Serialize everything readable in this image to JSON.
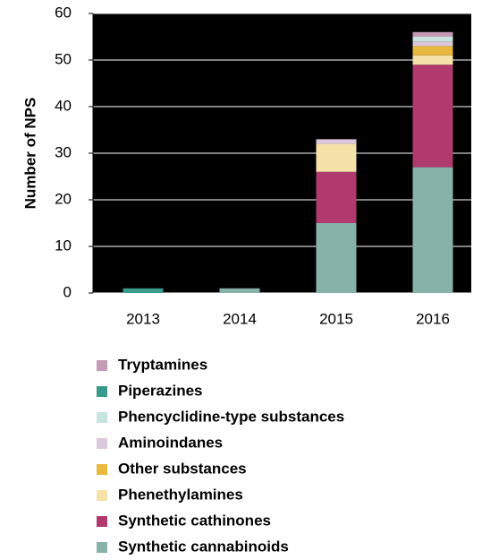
{
  "chart_data": {
    "type": "stacked_bar",
    "ylabel": "Number of NPS",
    "categories": [
      "2013",
      "2014",
      "2015",
      "2016"
    ],
    "series": [
      {
        "name": "Synthetic cannabinoids",
        "color": "#86b2aa",
        "values": [
          0,
          1,
          15,
          27
        ]
      },
      {
        "name": "Synthetic cathinones",
        "color": "#b03a6e",
        "values": [
          0,
          0,
          11,
          22
        ]
      },
      {
        "name": "Phenethylamines",
        "color": "#f6e2a8",
        "values": [
          0,
          0,
          6,
          2
        ]
      },
      {
        "name": "Other substances",
        "color": "#e8b93e",
        "values": [
          0,
          0,
          0,
          2
        ]
      },
      {
        "name": "Aminoindanes",
        "color": "#dcc8dc",
        "values": [
          0,
          0,
          1,
          1
        ]
      },
      {
        "name": "Phencyclidine-type substances",
        "color": "#c8e4df",
        "values": [
          0,
          0,
          0,
          1
        ]
      },
      {
        "name": "Piperazines",
        "color": "#3a9a8c",
        "values": [
          1,
          0,
          0,
          0
        ]
      },
      {
        "name": "Tryptamines",
        "color": "#c49ab5",
        "values": [
          0,
          0,
          0,
          1
        ]
      }
    ],
    "ylim": [
      0,
      60
    ],
    "yticks": [
      0,
      10,
      20,
      30,
      40,
      50,
      60
    ],
    "grid": true,
    "plot_background": "#000000",
    "grid_color": "#ffffff"
  }
}
